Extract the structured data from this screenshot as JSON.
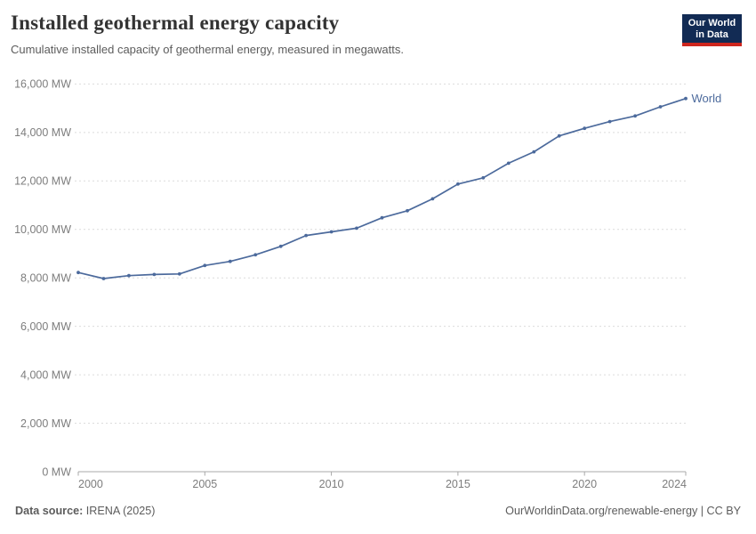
{
  "header": {
    "title": "Installed geothermal energy capacity",
    "subtitle": "Cumulative installed capacity of geothermal energy, measured in megawatts."
  },
  "logo": {
    "line1": "Our World",
    "line2": "in Data",
    "bg_color": "#122B54",
    "stripe_color": "#CE261E"
  },
  "footer": {
    "source_label": "Data source:",
    "source_value": " IRENA (2025)",
    "citation": "OurWorldinData.org/renewable-energy | CC BY"
  },
  "chart_data": {
    "type": "line",
    "title": "Installed geothermal energy capacity",
    "xlabel": "",
    "ylabel": "MW",
    "grid": "horizontal-dashed",
    "legend_position": "end-of-line",
    "xlim": [
      2000,
      2024
    ],
    "ylim": [
      0,
      16000
    ],
    "x": [
      2000,
      2001,
      2002,
      2003,
      2004,
      2005,
      2006,
      2007,
      2008,
      2009,
      2010,
      2011,
      2012,
      2013,
      2014,
      2015,
      2016,
      2017,
      2018,
      2019,
      2020,
      2021,
      2022,
      2023,
      2024
    ],
    "series": [
      {
        "name": "World",
        "color": "#4C6A9C",
        "values": [
          8220,
          7970,
          8090,
          8140,
          8160,
          8510,
          8680,
          8950,
          9300,
          9750,
          9900,
          10050,
          10480,
          10770,
          11260,
          11870,
          12130,
          12730,
          13200,
          13860,
          14170,
          14450,
          14680,
          15060,
          15400
        ]
      }
    ],
    "yticks": [
      {
        "value": 0,
        "label": "0 MW"
      },
      {
        "value": 2000,
        "label": "2,000 MW"
      },
      {
        "value": 4000,
        "label": "4,000 MW"
      },
      {
        "value": 6000,
        "label": "6,000 MW"
      },
      {
        "value": 8000,
        "label": "8,000 MW"
      },
      {
        "value": 10000,
        "label": "10,000 MW"
      },
      {
        "value": 12000,
        "label": "12,000 MW"
      },
      {
        "value": 14000,
        "label": "14,000 MW"
      },
      {
        "value": 16000,
        "label": "16,000 MW"
      }
    ],
    "xticks": [
      {
        "value": 2000,
        "label": "2000"
      },
      {
        "value": 2005,
        "label": "2005"
      },
      {
        "value": 2010,
        "label": "2010"
      },
      {
        "value": 2015,
        "label": "2015"
      },
      {
        "value": 2020,
        "label": "2020"
      },
      {
        "value": 2024,
        "label": "2024"
      }
    ],
    "colors": {
      "gridline": "#dcdcdc",
      "axis": "#a8a8a8",
      "tick_text": "#7d7d7d"
    }
  }
}
